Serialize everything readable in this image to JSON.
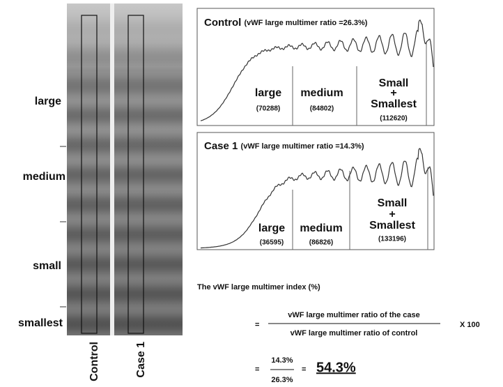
{
  "gel": {
    "band_labels": [
      "large",
      "medium",
      "small",
      "smallest"
    ],
    "lane_labels": [
      "Control",
      "Case 1"
    ]
  },
  "panels": [
    {
      "title": "Control",
      "subtitle": "(vWF large multimer ratio =26.3%)",
      "regions": [
        {
          "label": [
            "large"
          ],
          "value": "(70288)"
        },
        {
          "label": [
            "medium"
          ],
          "value": "(84802)"
        },
        {
          "label": [
            "Small",
            "+",
            "Smallest"
          ],
          "value": "(112620)"
        }
      ]
    },
    {
      "title": "Case 1",
      "subtitle": "(vWF large multimer ratio =14.3%)",
      "regions": [
        {
          "label": [
            "large"
          ],
          "value": "(36595)"
        },
        {
          "label": [
            "medium"
          ],
          "value": "(86826)"
        },
        {
          "label": [
            "Small",
            "+",
            "Smallest"
          ],
          "value": "(133196)"
        }
      ]
    }
  ],
  "formula": {
    "heading": "The vWF large multimer index (%)",
    "eq1": "=",
    "numerator": "vWF large multimer ratio  of the case",
    "denominator": "vWF large multimer ratio of control",
    "multiplier": "X 100",
    "eq2": "=",
    "num2": "14.3%",
    "den2": "26.3%",
    "eq3": "=",
    "result": "54.3%"
  }
}
